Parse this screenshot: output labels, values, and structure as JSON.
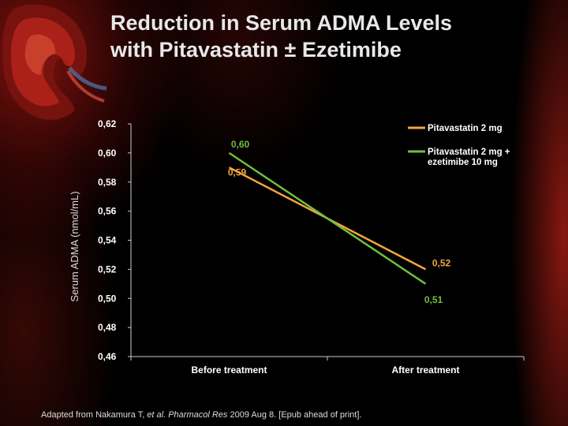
{
  "title": {
    "line1": "Reduction in Serum ADMA Levels",
    "line2": "with Pitavastatin ± Ezetimibe"
  },
  "footnote": {
    "prefix": "Adapted from Nakamura T, ",
    "italic": "et al. Pharmacol Res",
    "suffix": " 2009 Aug 8. [Epub ahead of print]."
  },
  "colors": {
    "pitavastatin": "#f4a53f",
    "combo": "#6fbf3f",
    "axis": "#cccccc",
    "text": "#ffffff"
  },
  "chart_data": {
    "type": "line",
    "categories": [
      "Before treatment",
      "After treatment"
    ],
    "series": [
      {
        "name": "Pitavastatin 2 mg",
        "values": [
          0.59,
          0.52
        ],
        "labels": [
          "0,59",
          "0,52"
        ],
        "color": "#f4a53f"
      },
      {
        "name": "Pitavastatin 2 mg + ezetimibe 10 mg",
        "name_lines": [
          "Pitavastatin 2 mg +",
          "ezetimibe 10 mg"
        ],
        "values": [
          0.6,
          0.51
        ],
        "labels": [
          "0,60",
          "0,51"
        ],
        "color": "#6fbf3f"
      }
    ],
    "ylabel": "Serum ADMA (nmol/mL)",
    "ylim": [
      0.46,
      0.62
    ],
    "yticks": [
      0.46,
      0.48,
      0.5,
      0.52,
      0.54,
      0.56,
      0.58,
      0.6,
      0.62
    ],
    "ytick_labels": [
      "0,46",
      "0,48",
      "0,50",
      "0,52",
      "0,54",
      "0,56",
      "0,58",
      "0,60",
      "0,62"
    ],
    "grid": false,
    "legend": "top-right"
  }
}
